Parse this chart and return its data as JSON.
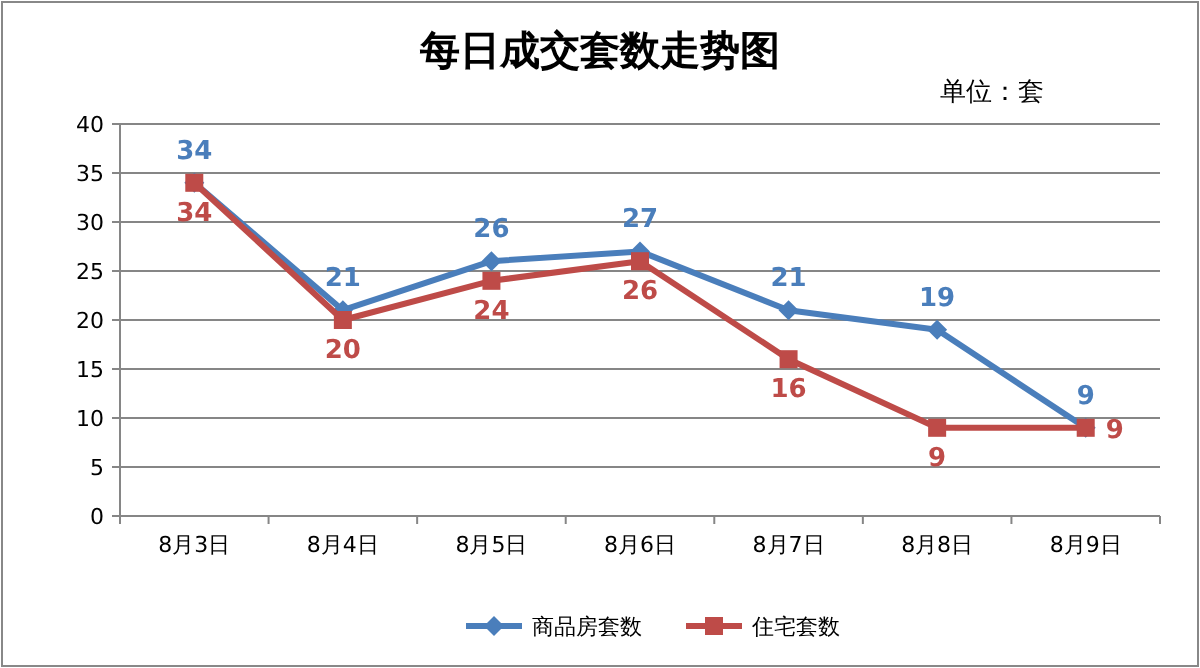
{
  "chart_data": {
    "type": "line",
    "title": "每日成交套数走势图",
    "annotations": [
      "单位：套"
    ],
    "categories": [
      "8月3日",
      "8月4日",
      "8月5日",
      "8月6日",
      "8月7日",
      "8月8日",
      "8月9日"
    ],
    "series": [
      {
        "name": "商品房套数",
        "color": "#4a7ebb",
        "marker": "diamond",
        "values": [
          34,
          21,
          26,
          27,
          21,
          19,
          9
        ]
      },
      {
        "name": "住宅套数",
        "color": "#be4b48",
        "marker": "square",
        "values": [
          34,
          20,
          24,
          26,
          16,
          9,
          9
        ]
      }
    ],
    "ylim": [
      0,
      40
    ],
    "yticks": [
      0,
      5,
      10,
      15,
      20,
      25,
      30,
      35,
      40
    ],
    "grid": "y",
    "legend": "bottom",
    "data_labels": true
  }
}
